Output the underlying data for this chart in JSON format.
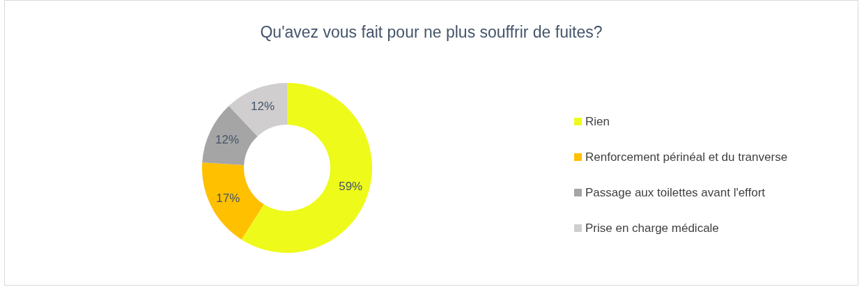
{
  "chart_data": {
    "type": "donut",
    "title": "Qu'avez vous fait pour ne plus souffrir de fuites?",
    "categories": [
      "Rien",
      "Renforcement périnéal et du tranverse",
      "Passage aux toilettes avant l'effort",
      "Prise en charge médicale"
    ],
    "values": [
      59,
      17,
      12,
      12
    ],
    "value_labels": [
      "59%",
      "17%",
      "12%",
      "12%"
    ],
    "colors": [
      "#eefa1a",
      "#ffc000",
      "#a5a5a5",
      "#d0cece"
    ],
    "legend": "right"
  }
}
